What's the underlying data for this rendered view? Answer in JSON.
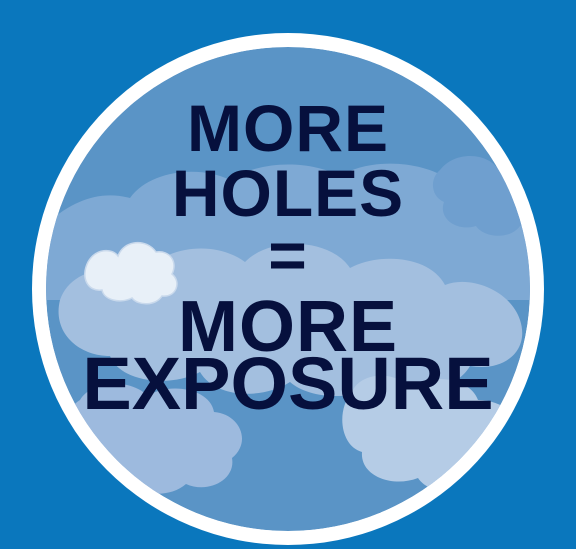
{
  "poster": {
    "lines": [
      "MORE",
      "HOLES",
      "=",
      "MORE",
      "EXPOSURE"
    ]
  },
  "colors": {
    "background": "#0a77bd",
    "ring": "#ffffff",
    "sky": "#5a94c6",
    "cloud_light": "#a8c3e2",
    "cloud_white": "#e8f0f8",
    "text": "#06103d"
  }
}
